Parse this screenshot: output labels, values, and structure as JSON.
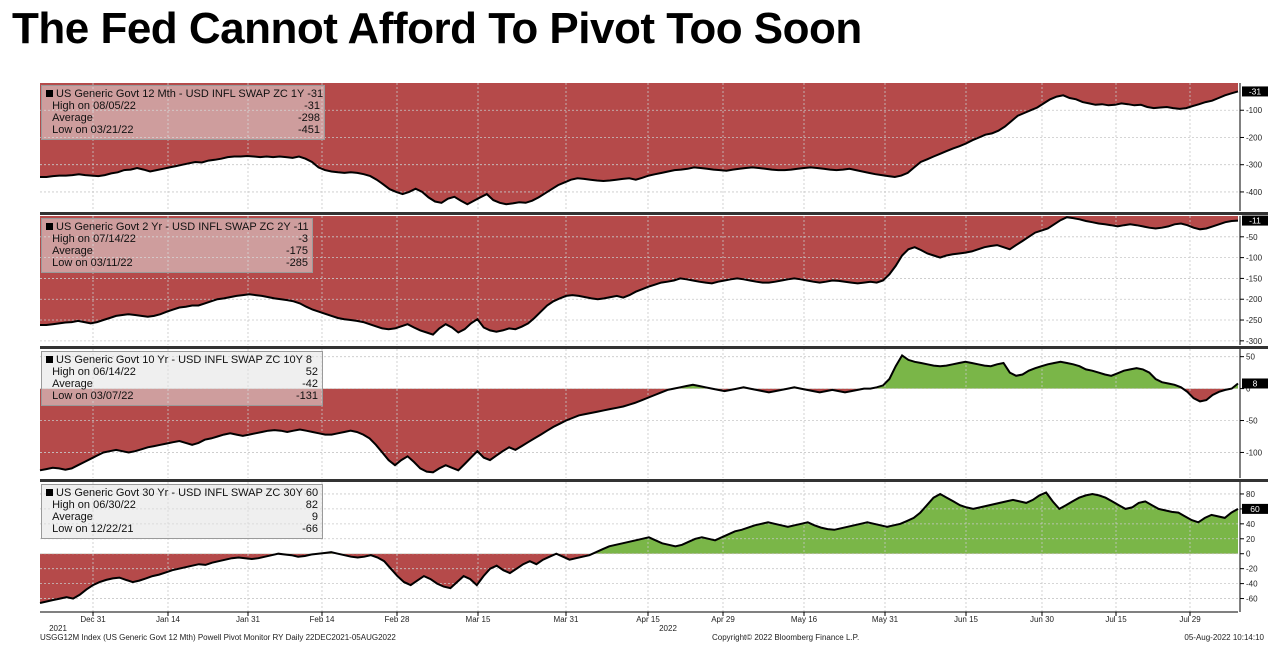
{
  "title": "The Fed Cannot Afford To Pivot Too Soon",
  "footer": {
    "left": "USGG12M Index (US Generic Govt 12 Mth) Powell Pivot Monitor RY  Daily 22DEC2021-05AUG2022",
    "center": "Copyright© 2022 Bloomberg Finance L.P.",
    "right": "05-Aug-2022 10:14:10"
  },
  "colors": {
    "positive": "#7ab648",
    "negative": "#b54a4a",
    "line": "#000000",
    "last_badge": "#000000"
  },
  "chart_data": {
    "type": "area",
    "x_tick_labels": [
      "Dec 31",
      "Jan 14",
      "Jan 31",
      "Feb 14",
      "Feb 28",
      "Mar 15",
      "Mar 31",
      "Apr 15",
      "Apr 29",
      "May 16",
      "May 31",
      "Jun 15",
      "Jun 30",
      "Jul 15",
      "Jul 29"
    ],
    "x_sub_labels": [
      "2021",
      "2022"
    ],
    "grid": true,
    "legend_placement": "top-left",
    "panels": [
      {
        "name": "US Generic Govt 12 Mth - USD INFL SWAP ZC 1Y",
        "last": -31,
        "high_label": "High on 08/05/22",
        "high": -31,
        "average_label": "Average",
        "average": -298,
        "low_label": "Low on 03/21/22",
        "low": -451,
        "ylim": [
          -470,
          0
        ],
        "yticks": [
          -100,
          -200,
          -300,
          -400
        ],
        "values": [
          -345,
          -345,
          -342,
          -340,
          -340,
          -338,
          -335,
          -338,
          -340,
          -342,
          -338,
          -332,
          -328,
          -320,
          -318,
          -312,
          -318,
          -325,
          -320,
          -315,
          -310,
          -305,
          -300,
          -295,
          -290,
          -292,
          -285,
          -282,
          -278,
          -272,
          -270,
          -270,
          -268,
          -270,
          -272,
          -270,
          -272,
          -270,
          -272,
          -275,
          -270,
          -278,
          -290,
          -310,
          -320,
          -325,
          -328,
          -330,
          -328,
          -330,
          -335,
          -342,
          -355,
          -372,
          -390,
          -400,
          -408,
          -400,
          -388,
          -400,
          -420,
          -435,
          -440,
          -425,
          -418,
          -432,
          -445,
          -432,
          -420,
          -408,
          -430,
          -440,
          -445,
          -442,
          -438,
          -440,
          -432,
          -420,
          -405,
          -390,
          -375,
          -365,
          -355,
          -350,
          -352,
          -355,
          -358,
          -360,
          -358,
          -355,
          -352,
          -350,
          -355,
          -348,
          -340,
          -335,
          -330,
          -325,
          -320,
          -318,
          -315,
          -310,
          -312,
          -315,
          -318,
          -320,
          -322,
          -318,
          -315,
          -312,
          -310,
          -312,
          -315,
          -318,
          -320,
          -320,
          -318,
          -315,
          -312,
          -310,
          -312,
          -315,
          -318,
          -320,
          -318,
          -315,
          -320,
          -325,
          -330,
          -335,
          -338,
          -342,
          -345,
          -340,
          -330,
          -310,
          -290,
          -280,
          -270,
          -260,
          -250,
          -240,
          -232,
          -222,
          -210,
          -200,
          -190,
          -185,
          -175,
          -160,
          -140,
          -120,
          -110,
          -100,
          -90,
          -75,
          -60,
          -50,
          -45,
          -55,
          -60,
          -70,
          -75,
          -80,
          -78,
          -82,
          -80,
          -75,
          -78,
          -82,
          -80,
          -88,
          -92,
          -90,
          -88,
          -92,
          -95,
          -92,
          -85,
          -78,
          -70,
          -65,
          -55,
          -45,
          -38,
          -31
        ]
      },
      {
        "name": "US Generic Govt 2 Yr - USD INFL SWAP ZC 2Y",
        "last": -11,
        "high_label": "High on 07/14/22",
        "high": -3,
        "average_label": "Average",
        "average": -175,
        "low_label": "Low on 03/11/22",
        "low": -285,
        "ylim": [
          -310,
          0
        ],
        "yticks": [
          -50,
          -100,
          -150,
          -200,
          -250,
          -300
        ],
        "values": [
          -262,
          -262,
          -260,
          -258,
          -256,
          -255,
          -252,
          -255,
          -258,
          -255,
          -250,
          -245,
          -240,
          -238,
          -236,
          -238,
          -240,
          -242,
          -240,
          -236,
          -230,
          -225,
          -220,
          -218,
          -215,
          -215,
          -210,
          -205,
          -200,
          -198,
          -195,
          -192,
          -190,
          -188,
          -190,
          -192,
          -195,
          -198,
          -200,
          -202,
          -205,
          -210,
          -218,
          -225,
          -230,
          -235,
          -240,
          -245,
          -248,
          -250,
          -252,
          -255,
          -260,
          -265,
          -270,
          -272,
          -270,
          -265,
          -260,
          -268,
          -275,
          -280,
          -285,
          -270,
          -260,
          -268,
          -280,
          -272,
          -258,
          -248,
          -268,
          -275,
          -278,
          -275,
          -270,
          -272,
          -266,
          -258,
          -245,
          -230,
          -215,
          -205,
          -198,
          -192,
          -190,
          -192,
          -195,
          -198,
          -200,
          -198,
          -195,
          -192,
          -196,
          -190,
          -182,
          -176,
          -170,
          -165,
          -160,
          -158,
          -155,
          -150,
          -152,
          -155,
          -158,
          -160,
          -162,
          -158,
          -155,
          -152,
          -150,
          -152,
          -155,
          -158,
          -160,
          -160,
          -158,
          -155,
          -152,
          -150,
          -152,
          -155,
          -158,
          -160,
          -158,
          -155,
          -156,
          -158,
          -160,
          -162,
          -160,
          -158,
          -160,
          -155,
          -140,
          -120,
          -95,
          -80,
          -75,
          -82,
          -90,
          -95,
          -100,
          -95,
          -92,
          -90,
          -88,
          -85,
          -80,
          -75,
          -72,
          -70,
          -75,
          -80,
          -70,
          -60,
          -50,
          -40,
          -35,
          -30,
          -20,
          -10,
          -3,
          -5,
          -8,
          -12,
          -15,
          -18,
          -20,
          -22,
          -25,
          -22,
          -20,
          -22,
          -25,
          -28,
          -30,
          -28,
          -25,
          -20,
          -18,
          -22,
          -28,
          -32,
          -30,
          -25,
          -20,
          -15,
          -12,
          -11
        ]
      },
      {
        "name": "US Generic Govt 10 Yr - USD INFL SWAP ZC 10Y",
        "last": 8,
        "high_label": "High on 06/14/22",
        "high": 52,
        "average_label": "Average",
        "average": -42,
        "low_label": "Low on 03/07/22",
        "low": -131,
        "ylim": [
          -140,
          62
        ],
        "yticks": [
          50,
          0,
          -50,
          -100
        ],
        "values": [
          -128,
          -126,
          -124,
          -125,
          -127,
          -125,
          -120,
          -115,
          -110,
          -105,
          -100,
          -98,
          -96,
          -98,
          -100,
          -98,
          -95,
          -92,
          -90,
          -88,
          -86,
          -84,
          -82,
          -85,
          -88,
          -85,
          -80,
          -78,
          -75,
          -72,
          -70,
          -72,
          -74,
          -72,
          -70,
          -68,
          -66,
          -65,
          -66,
          -68,
          -66,
          -64,
          -66,
          -68,
          -70,
          -72,
          -72,
          -70,
          -68,
          -66,
          -68,
          -72,
          -78,
          -88,
          -100,
          -112,
          -120,
          -112,
          -106,
          -115,
          -125,
          -130,
          -131,
          -125,
          -120,
          -124,
          -128,
          -118,
          -108,
          -98,
          -108,
          -112,
          -105,
          -98,
          -92,
          -96,
          -90,
          -84,
          -78,
          -72,
          -66,
          -60,
          -55,
          -50,
          -46,
          -42,
          -40,
          -38,
          -36,
          -34,
          -32,
          -30,
          -28,
          -25,
          -22,
          -18,
          -14,
          -10,
          -6,
          -2,
          0,
          2,
          4,
          6,
          4,
          2,
          0,
          -2,
          -4,
          -2,
          0,
          2,
          0,
          -2,
          -4,
          -6,
          -4,
          -2,
          0,
          2,
          0,
          -2,
          -4,
          -6,
          -4,
          -2,
          -4,
          -6,
          -4,
          -2,
          0,
          0,
          2,
          5,
          15,
          35,
          52,
          45,
          42,
          40,
          38,
          36,
          35,
          36,
          38,
          40,
          42,
          40,
          38,
          36,
          35,
          38,
          40,
          25,
          20,
          22,
          28,
          32,
          35,
          38,
          40,
          42,
          40,
          38,
          35,
          30,
          28,
          25,
          22,
          20,
          24,
          28,
          30,
          32,
          30,
          25,
          15,
          10,
          8,
          6,
          2,
          -5,
          -15,
          -20,
          -18,
          -10,
          -5,
          -2,
          0,
          8
        ]
      },
      {
        "name": "US Generic Govt 30 Yr - USD INFL SWAP ZC 30Y",
        "last": 60,
        "high_label": "High on 06/30/22",
        "high": 82,
        "average_label": "Average",
        "average": 9,
        "low_label": "Low on 12/22/21",
        "low": -66,
        "ylim": [
          -78,
          96
        ],
        "yticks": [
          80,
          60,
          40,
          20,
          0,
          -20,
          -40,
          -60
        ],
        "values": [
          -66,
          -64,
          -62,
          -60,
          -58,
          -60,
          -55,
          -48,
          -42,
          -38,
          -35,
          -33,
          -32,
          -35,
          -38,
          -36,
          -33,
          -30,
          -28,
          -25,
          -22,
          -20,
          -18,
          -16,
          -14,
          -15,
          -12,
          -10,
          -8,
          -6,
          -5,
          -6,
          -7,
          -6,
          -4,
          -2,
          0,
          -1,
          -2,
          -4,
          -3,
          -1,
          0,
          1,
          2,
          0,
          -2,
          -4,
          -5,
          -4,
          -2,
          -5,
          -10,
          -20,
          -30,
          -38,
          -42,
          -36,
          -30,
          -34,
          -40,
          -44,
          -46,
          -38,
          -30,
          -34,
          -42,
          -30,
          -20,
          -16,
          -22,
          -26,
          -20,
          -14,
          -10,
          -14,
          -8,
          -4,
          0,
          -4,
          -8,
          -6,
          -4,
          -2,
          2,
          6,
          10,
          12,
          14,
          16,
          18,
          20,
          22,
          18,
          14,
          12,
          10,
          12,
          16,
          20,
          22,
          20,
          18,
          22,
          26,
          30,
          32,
          35,
          38,
          40,
          42,
          40,
          38,
          36,
          38,
          40,
          42,
          38,
          35,
          33,
          32,
          34,
          36,
          38,
          40,
          42,
          40,
          38,
          36,
          38,
          40,
          44,
          48,
          55,
          65,
          75,
          80,
          75,
          70,
          65,
          62,
          60,
          62,
          64,
          66,
          68,
          70,
          72,
          70,
          68,
          72,
          78,
          82,
          70,
          60,
          65,
          70,
          75,
          78,
          80,
          78,
          75,
          70,
          65,
          60,
          62,
          68,
          70,
          65,
          60,
          58,
          56,
          55,
          50,
          45,
          42,
          48,
          52,
          50,
          48,
          55,
          60
        ]
      }
    ]
  }
}
